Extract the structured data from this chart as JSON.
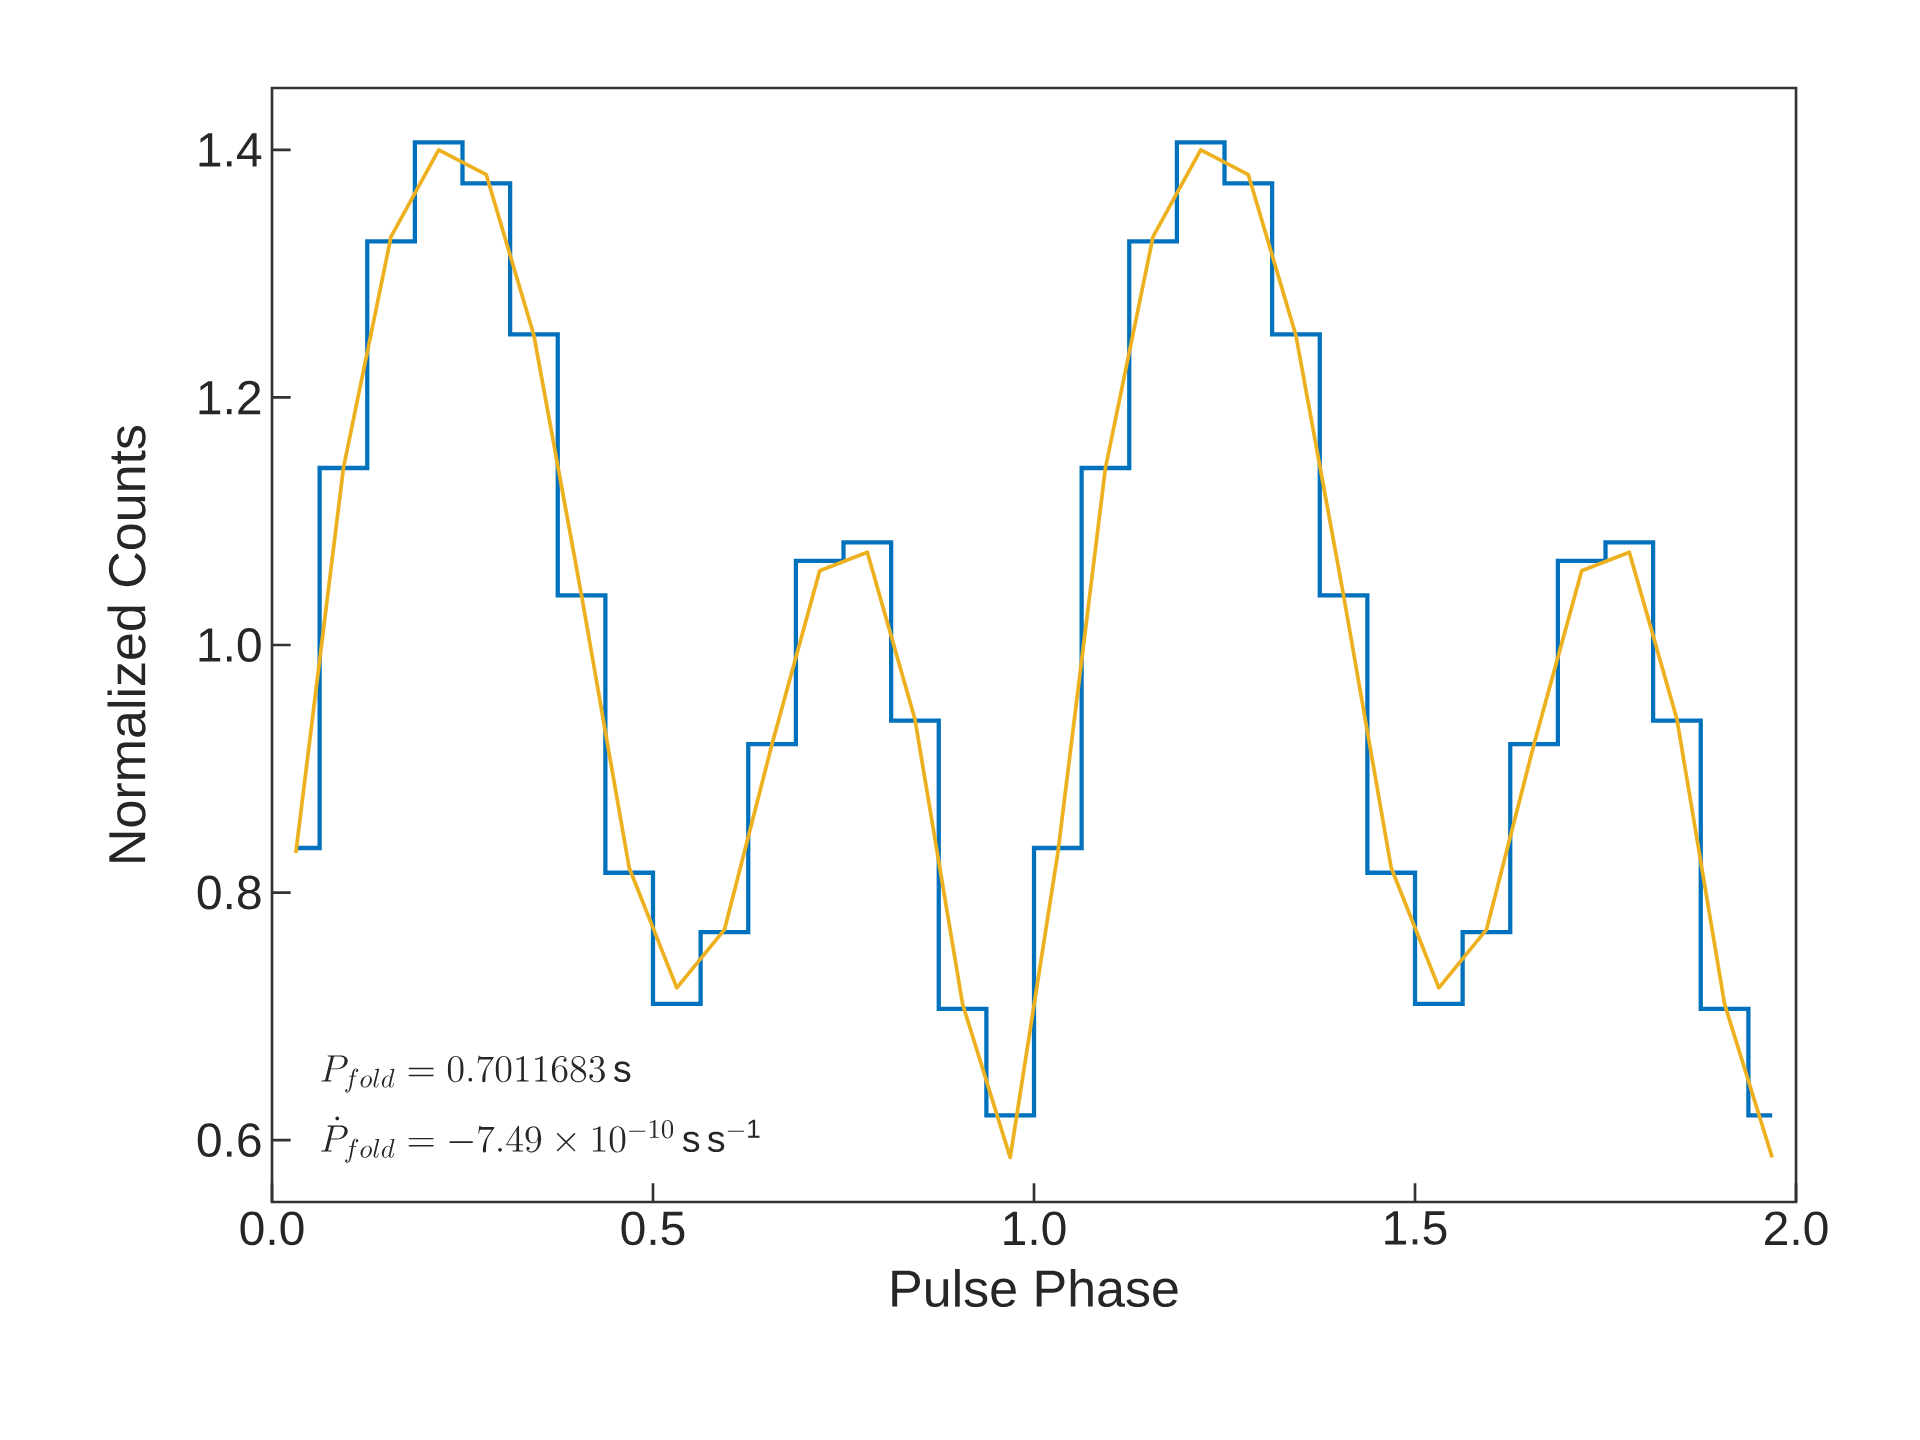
{
  "chart_data": {
    "type": "step",
    "xlabel": "Pulse Phase",
    "ylabel": "Normalized Counts",
    "x": [
      0.03125,
      0.09375,
      0.15625,
      0.21875,
      0.28125,
      0.34375,
      0.40625,
      0.46875,
      0.53125,
      0.59375,
      0.65625,
      0.71875,
      0.78125,
      0.84375,
      0.90625,
      0.96875,
      1.03125,
      1.09375,
      1.15625,
      1.21875,
      1.28125,
      1.34375,
      1.40625,
      1.46875,
      1.53125,
      1.59375,
      1.65625,
      1.71875,
      1.78125,
      1.84375,
      1.90625,
      1.96875
    ],
    "series": [
      {
        "color": "#0072bd",
        "values": [
          0.836,
          1.143,
          1.326,
          1.406,
          1.373,
          1.251,
          1.04,
          0.816,
          0.71,
          0.768,
          0.92,
          1.068,
          1.083,
          0.939,
          0.706,
          0.62,
          0.836,
          1.143,
          1.326,
          1.406,
          1.373,
          1.251,
          1.04,
          0.816,
          0.71,
          0.768,
          0.92,
          1.068,
          1.083,
          0.939,
          0.706,
          0.62
        ]
      },
      {
        "type": "line",
        "color": "#edb120",
        "values": [
          0.832,
          1.143,
          1.33,
          1.4,
          1.38,
          1.25,
          1.04,
          0.82,
          0.723,
          0.77,
          0.92,
          1.06,
          1.075,
          0.94,
          0.71,
          0.586,
          0.832,
          1.143,
          1.33,
          1.4,
          1.38,
          1.25,
          1.04,
          0.82,
          0.723,
          0.77,
          0.92,
          1.06,
          1.075,
          0.94,
          0.71,
          0.586
        ]
      }
    ],
    "xlim": [
      0,
      2
    ],
    "ylim": [
      0.55,
      1.45
    ],
    "xticks": [
      {
        "value": 0,
        "label": "0.0"
      },
      0.5,
      {
        "value": 1.0,
        "label": "1.0"
      },
      1.5,
      {
        "value": 2.0,
        "label": "2.0"
      }
    ],
    "yticks": [
      0.6,
      0.8,
      {
        "value": 1.0,
        "label": "1.0"
      },
      1.2,
      1.4
    ],
    "annotations": [
      "P_{fold} = 0.7011683\\,\\mathrm{s}",
      "\\dot{P}_{fold} = -7.49 \\times 10^{-10}\\,\\mathrm{s\\,s^{-1}}"
    ]
  }
}
